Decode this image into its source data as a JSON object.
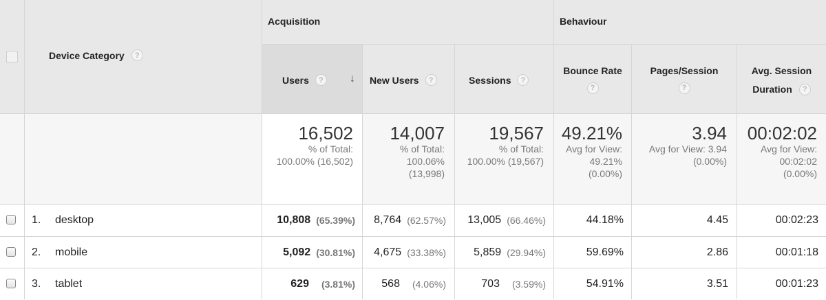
{
  "header": {
    "device_category": "Device Category",
    "group_acquisition": "Acquisition",
    "group_behaviour": "Behaviour",
    "col_users": "Users",
    "col_new_users": "New Users",
    "col_sessions": "Sessions",
    "col_bounce_rate": "Bounce Rate",
    "col_pages_session": "Pages/Session",
    "col_avg_session_line1": "Avg. Session",
    "col_avg_session_line2": "Duration",
    "help_glyph": "?",
    "sort_arrow": "↓"
  },
  "totals": {
    "users": {
      "value": "16,502",
      "sub1": "% of Total:",
      "sub2": "100.00% (16,502)"
    },
    "new_users": {
      "value": "14,007",
      "sub1": "% of Total:",
      "sub2": "100.06%",
      "sub3": "(13,998)"
    },
    "sessions": {
      "value": "19,567",
      "sub1": "% of Total:",
      "sub2": "100.00% (19,567)"
    },
    "bounce_rate": {
      "value": "49.21%",
      "sub1": "Avg for View:",
      "sub2": "49.21%",
      "sub3": "(0.00%)"
    },
    "pages_session": {
      "value": "3.94",
      "sub1": "Avg for View: 3.94",
      "sub2": "(0.00%)"
    },
    "avg_duration": {
      "value": "00:02:02",
      "sub1": "Avg for View:",
      "sub2": "00:02:02",
      "sub3": "(0.00%)"
    }
  },
  "rows": [
    {
      "index": "1.",
      "device": "desktop",
      "users": "10,808",
      "users_pct": "(65.39%)",
      "new_users": "8,764",
      "new_users_pct": "(62.57%)",
      "sessions": "13,005",
      "sessions_pct": "(66.46%)",
      "bounce_rate": "44.18%",
      "pages_session": "4.45",
      "avg_duration": "00:02:23"
    },
    {
      "index": "2.",
      "device": "mobile",
      "users": "5,092",
      "users_pct": "(30.81%)",
      "new_users": "4,675",
      "new_users_pct": "(33.38%)",
      "sessions": "5,859",
      "sessions_pct": "(29.94%)",
      "bounce_rate": "59.69%",
      "pages_session": "2.86",
      "avg_duration": "00:01:18"
    },
    {
      "index": "3.",
      "device": "tablet",
      "users": "629",
      "users_pct": "(3.81%)",
      "new_users": "568",
      "new_users_pct": "(4.06%)",
      "sessions": "703",
      "sessions_pct": "(3.59%)",
      "bounce_rate": "54.91%",
      "pages_session": "3.51",
      "avg_duration": "00:01:23"
    }
  ],
  "colors": {
    "header_bg": "#e8e8e8",
    "totals_bg": "#f6f6f6",
    "border": "#d6d6d6",
    "muted_text": "#777777"
  }
}
